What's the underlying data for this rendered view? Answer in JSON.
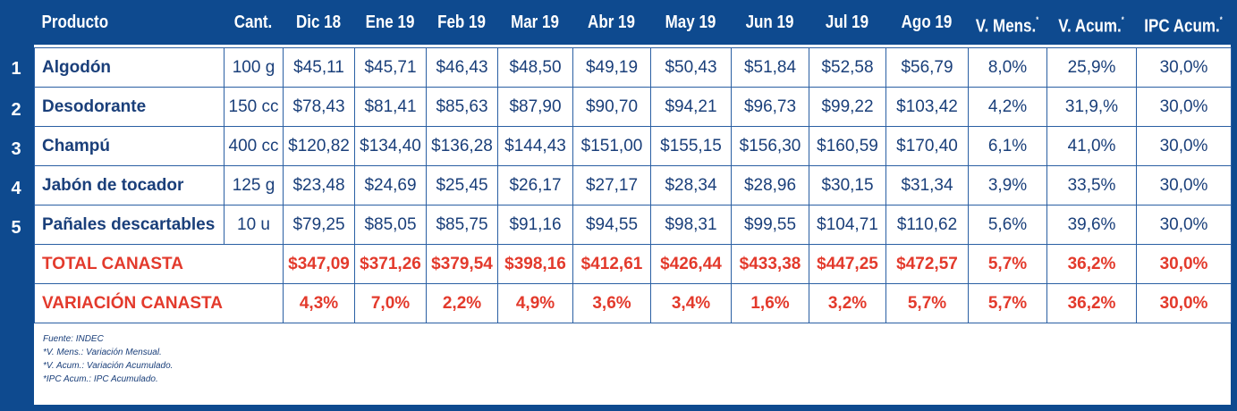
{
  "header": {
    "producto": "Producto",
    "cant": "Cant.",
    "months": [
      "Dic 18",
      "Ene 19",
      "Feb 19",
      "Mar 19",
      "Abr 19",
      "May 19",
      "Jun 19",
      "Jul 19",
      "Ago 19"
    ],
    "v_mens": "V. Mens.",
    "v_acum": "V. Acum.",
    "ipc_acum": "IPC Acum.",
    "asterisk": "*"
  },
  "rows": [
    {
      "num": "1",
      "name": "Algodón",
      "qty": "100 g",
      "values": [
        "$45,11",
        "$45,71",
        "$46,43",
        "$48,50",
        "$49,19",
        "$50,43",
        "$51,84",
        "$52,58",
        "$56,79"
      ],
      "v_mens": "8,0%",
      "v_acum": "25,9%",
      "ipc": "30,0%"
    },
    {
      "num": "2",
      "name": "Desodorante",
      "qty": "150 cc",
      "values": [
        "$78,43",
        "$81,41",
        "$85,63",
        "$87,90",
        "$90,70",
        "$94,21",
        "$96,73",
        "$99,22",
        "$103,42"
      ],
      "v_mens": "4,2%",
      "v_acum": "31,9,%",
      "ipc": "30,0%"
    },
    {
      "num": "3",
      "name": "Champú",
      "qty": "400 cc",
      "values": [
        "$120,82",
        "$134,40",
        "$136,28",
        "$144,43",
        "$151,00",
        "$155,15",
        "$156,30",
        "$160,59",
        "$170,40"
      ],
      "v_mens": "6,1%",
      "v_acum": "41,0%",
      "ipc": "30,0%"
    },
    {
      "num": "4",
      "name": "Jabón de tocador",
      "qty": "125 g",
      "values": [
        "$23,48",
        "$24,69",
        "$25,45",
        "$26,17",
        "$27,17",
        "$28,34",
        "$28,96",
        "$30,15",
        "$31,34"
      ],
      "v_mens": "3,9%",
      "v_acum": "33,5%",
      "ipc": "30,0%"
    },
    {
      "num": "5",
      "name": "Pañales descartables",
      "qty": "10 u",
      "values": [
        "$79,25",
        "$85,05",
        "$85,75",
        "$91,16",
        "$94,55",
        "$98,31",
        "$99,55",
        "$104,71",
        "$110,62"
      ],
      "v_mens": "5,6%",
      "v_acum": "39,6%",
      "ipc": "30,0%"
    }
  ],
  "totals": [
    {
      "name": "TOTAL CANASTA",
      "values": [
        "$347,09",
        "$371,26",
        "$379,54",
        "$398,16",
        "$412,61",
        "$426,44",
        "$433,38",
        "$447,25",
        "$472,57"
      ],
      "v_mens": "5,7%",
      "v_acum": "36,2%",
      "ipc": "30,0%"
    },
    {
      "name": "VARIACIÓN CANASTA",
      "values": [
        "4,3%",
        "7,0%",
        "2,2%",
        "4,9%",
        "3,6%",
        "3,4%",
        "1,6%",
        "3,2%",
        "5,7%"
      ],
      "v_mens": "5,7%",
      "v_acum": "36,2%",
      "ipc": "30,0%"
    }
  ],
  "notes": [
    "Fuente: INDEC",
    "*V. Mens.: Variación Mensual.",
    "*V. Acum.: Variación Acumulado.",
    "*IPC Acum.: IPC Acumulado."
  ],
  "colors": {
    "background_blue": "#0e4a8f",
    "text_blue": "#1a3f7a",
    "total_red": "#e33a2c"
  }
}
